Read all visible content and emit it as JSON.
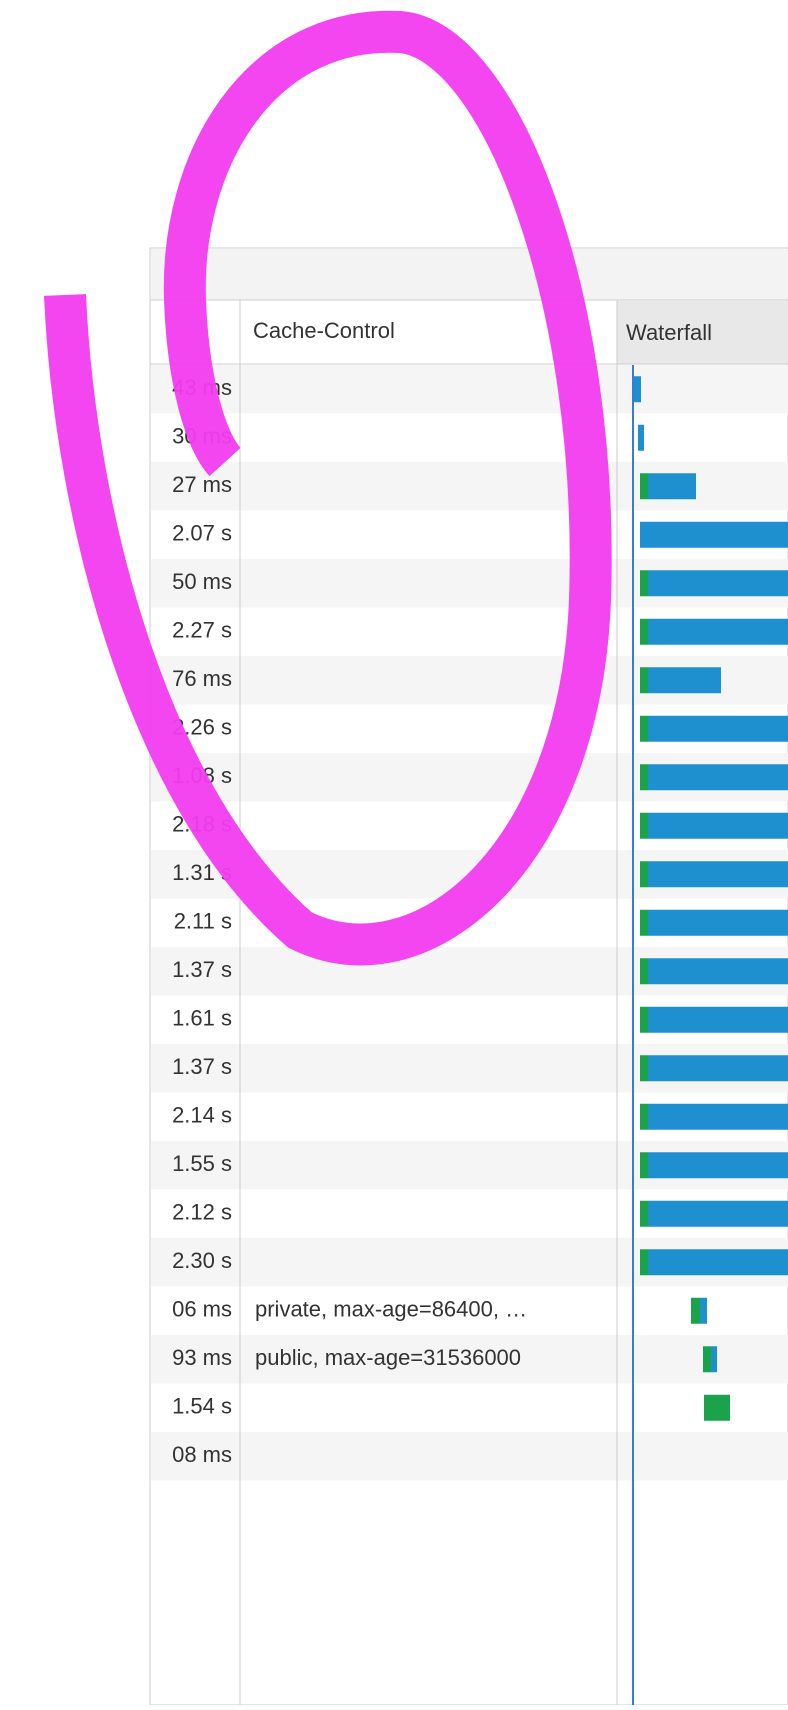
{
  "table": {
    "headers": {
      "cache_control": "Cache-Control",
      "waterfall": "Waterfall"
    },
    "rows": [
      {
        "time": "43 ms"
      },
      {
        "time": "30 ms"
      },
      {
        "time": "27 ms"
      },
      {
        "time": "2.07 s"
      },
      {
        "time": "50 ms"
      },
      {
        "time": "2.27 s"
      },
      {
        "time": "76 ms"
      },
      {
        "time": "2.26 s"
      },
      {
        "time": "1.08 s"
      },
      {
        "time": "2.18 s"
      },
      {
        "time": "1.31 s"
      },
      {
        "time": "2.11 s"
      },
      {
        "time": "1.37 s"
      },
      {
        "time": "1.61 s"
      },
      {
        "time": "1.37 s"
      },
      {
        "time": "2.14 s"
      },
      {
        "time": "1.55 s"
      },
      {
        "time": "2.12 s"
      },
      {
        "time": "2.30 s"
      },
      {
        "time": "06 ms",
        "cache_control": "private, max-age=86400, …"
      },
      {
        "time": "93 ms",
        "cache_control": "public, max-age=31536000"
      },
      {
        "time": "1.54 s"
      },
      {
        "time": "08 ms"
      }
    ]
  }
}
